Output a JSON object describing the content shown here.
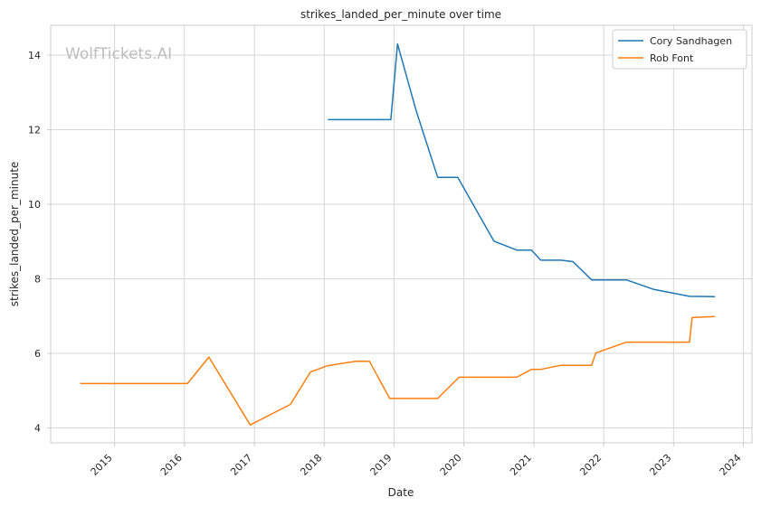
{
  "chart_data": {
    "type": "line",
    "title": "strikes_landed_per_minute over time",
    "xlabel": "Date",
    "ylabel": "strikes_landed_per_minute",
    "watermark": "WolfTickets.AI",
    "xlim": [
      "2014-02-01",
      "2024-02-15"
    ],
    "ylim": [
      3.6,
      14.8
    ],
    "yticks": [
      4,
      6,
      8,
      10,
      12,
      14
    ],
    "xticks": [
      "2015",
      "2016",
      "2017",
      "2018",
      "2019",
      "2020",
      "2021",
      "2022",
      "2023",
      "2024"
    ],
    "legend_position": "top-right",
    "grid": true,
    "series": [
      {
        "name": "Cory Sandhagen",
        "color": "#1f77b4",
        "points": [
          [
            "2018-01-20",
            12.27
          ],
          [
            "2018-12-15",
            12.27
          ],
          [
            "2019-01-19",
            14.3
          ],
          [
            "2019-04-27",
            12.5
          ],
          [
            "2019-08-17",
            10.72
          ],
          [
            "2019-11-30",
            10.72
          ],
          [
            "2020-06-06",
            9.01
          ],
          [
            "2020-10-03",
            8.77
          ],
          [
            "2020-12-19",
            8.77
          ],
          [
            "2021-02-06",
            8.5
          ],
          [
            "2021-05-22",
            8.5
          ],
          [
            "2021-07-24",
            8.46
          ],
          [
            "2021-10-30",
            7.97
          ],
          [
            "2022-04-30",
            7.97
          ],
          [
            "2022-09-17",
            7.72
          ],
          [
            "2023-03-25",
            7.53
          ],
          [
            "2023-08-05",
            7.52
          ]
        ]
      },
      {
        "name": "Rob Font",
        "color": "#ff7f0e",
        "points": [
          [
            "2014-07-05",
            5.19
          ],
          [
            "2016-01-17",
            5.19
          ],
          [
            "2016-05-08",
            5.9
          ],
          [
            "2016-12-10",
            4.08
          ],
          [
            "2017-07-08",
            4.63
          ],
          [
            "2017-10-21",
            5.5
          ],
          [
            "2018-01-20",
            5.67
          ],
          [
            "2018-06-16",
            5.79
          ],
          [
            "2018-08-25",
            5.79
          ],
          [
            "2018-12-09",
            4.79
          ],
          [
            "2019-08-17",
            4.79
          ],
          [
            "2019-12-07",
            5.36
          ],
          [
            "2020-10-03",
            5.36
          ],
          [
            "2020-12-19",
            5.57
          ],
          [
            "2021-02-06",
            5.57
          ],
          [
            "2021-05-22",
            5.68
          ],
          [
            "2021-10-30",
            5.68
          ],
          [
            "2021-11-20",
            6.01
          ],
          [
            "2022-04-30",
            6.3
          ],
          [
            "2023-03-25",
            6.3
          ],
          [
            "2023-04-08",
            6.96
          ],
          [
            "2023-08-05",
            6.99
          ]
        ]
      }
    ]
  }
}
